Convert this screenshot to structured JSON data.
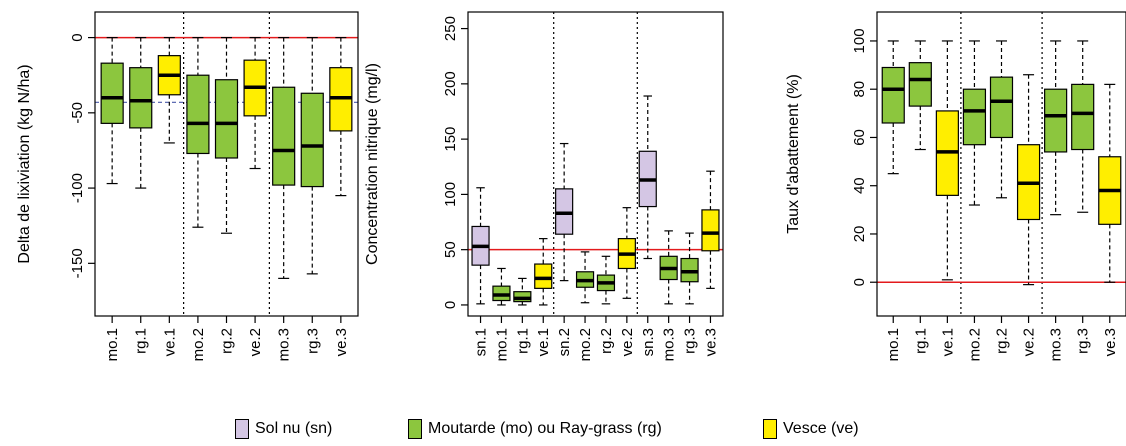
{
  "colors": {
    "sn": "#d4c6e4",
    "mo": "#8cc63e",
    "rg": "#8cc63e",
    "ve": "#ffee00",
    "reference_line": "#e31a1c",
    "mean_line": "#4a5aaa"
  },
  "legend": {
    "items": [
      {
        "label": "Sol nu (sn)",
        "color": "#d4c6e4"
      },
      {
        "label": "Moutarde (mo) ou Ray-grass (rg)",
        "color": "#8cc63e"
      },
      {
        "label": "Vesce (ve)",
        "color": "#ffee00"
      }
    ]
  },
  "chart_data": [
    {
      "type": "box",
      "ylabel": "Delta de lixiviation (kg N/ha)",
      "ylim": [
        -185,
        17
      ],
      "yticks": [
        0,
        -50,
        -100,
        -150
      ],
      "reference_line": 0,
      "mean_line": -43,
      "group_separators_after": [
        3,
        6
      ],
      "categories": [
        "mo.1",
        "rg.1",
        "ve.1",
        "mo.2",
        "rg.2",
        "ve.2",
        "mo.3",
        "rg.3",
        "ve.3"
      ],
      "boxes": [
        {
          "label": "mo.1",
          "group": "mo",
          "min": -97,
          "q1": -57,
          "median": -40,
          "q3": -17,
          "max": 0
        },
        {
          "label": "rg.1",
          "group": "rg",
          "min": -100,
          "q1": -60,
          "median": -42,
          "q3": -20,
          "max": 0
        },
        {
          "label": "ve.1",
          "group": "ve",
          "min": -70,
          "q1": -38,
          "median": -25,
          "q3": -12,
          "max": 0
        },
        {
          "label": "mo.2",
          "group": "mo",
          "min": -126,
          "q1": -77,
          "median": -57,
          "q3": -25,
          "max": 0
        },
        {
          "label": "rg.2",
          "group": "rg",
          "min": -130,
          "q1": -80,
          "median": -57,
          "q3": -28,
          "max": 0
        },
        {
          "label": "ve.2",
          "group": "ve",
          "min": -87,
          "q1": -52,
          "median": -33,
          "q3": -15,
          "max": 0
        },
        {
          "label": "mo.3",
          "group": "mo",
          "min": -160,
          "q1": -98,
          "median": -75,
          "q3": -33,
          "max": 0
        },
        {
          "label": "rg.3",
          "group": "rg",
          "min": -157,
          "q1": -99,
          "median": -72,
          "q3": -37,
          "max": 0
        },
        {
          "label": "ve.3",
          "group": "ve",
          "min": -105,
          "q1": -62,
          "median": -40,
          "q3": -20,
          "max": 0
        }
      ]
    },
    {
      "type": "box",
      "ylabel": "Concentration nitrique (mg/l)",
      "ylim": [
        -10,
        265
      ],
      "yticks": [
        0,
        50,
        100,
        150,
        200,
        250
      ],
      "reference_line": 50,
      "group_separators_after": [
        4,
        8
      ],
      "categories": [
        "sn.1",
        "mo.1",
        "rg.1",
        "ve.1",
        "sn.2",
        "mo.2",
        "rg.2",
        "ve.2",
        "sn.3",
        "mo.3",
        "rg.3",
        "ve.3"
      ],
      "boxes": [
        {
          "label": "sn.1",
          "group": "sn",
          "min": 1,
          "q1": 36,
          "median": 53,
          "q3": 71,
          "max": 106
        },
        {
          "label": "mo.1",
          "group": "mo",
          "min": 0,
          "q1": 4,
          "median": 9,
          "q3": 17,
          "max": 33
        },
        {
          "label": "rg.1",
          "group": "rg",
          "min": 0,
          "q1": 3,
          "median": 6,
          "q3": 12,
          "max": 24
        },
        {
          "label": "ve.1",
          "group": "ve",
          "min": 0,
          "q1": 15,
          "median": 24,
          "q3": 37,
          "max": 60
        },
        {
          "label": "sn.2",
          "group": "sn",
          "min": 22,
          "q1": 64,
          "median": 83,
          "q3": 105,
          "max": 146
        },
        {
          "label": "mo.2",
          "group": "mo",
          "min": 2,
          "q1": 16,
          "median": 22,
          "q3": 30,
          "max": 48
        },
        {
          "label": "rg.2",
          "group": "rg",
          "min": 1,
          "q1": 13,
          "median": 20,
          "q3": 27,
          "max": 44
        },
        {
          "label": "ve.2",
          "group": "ve",
          "min": 6,
          "q1": 33,
          "median": 46,
          "q3": 60,
          "max": 88
        },
        {
          "label": "sn.3",
          "group": "sn",
          "min": 42,
          "q1": 89,
          "median": 113,
          "q3": 139,
          "max": 189
        },
        {
          "label": "mo.3",
          "group": "mo",
          "min": 1,
          "q1": 23,
          "median": 33,
          "q3": 44,
          "max": 67
        },
        {
          "label": "rg.3",
          "group": "rg",
          "min": 1,
          "q1": 21,
          "median": 30,
          "q3": 42,
          "max": 65
        },
        {
          "label": "ve.3",
          "group": "ve",
          "min": 15,
          "q1": 49,
          "median": 65,
          "q3": 86,
          "max": 121
        }
      ]
    },
    {
      "type": "box",
      "ylabel": "Taux d'abattement (%)",
      "ylim": [
        -14,
        112
      ],
      "yticks": [
        0,
        20,
        40,
        60,
        80,
        100
      ],
      "reference_line": 0,
      "group_separators_after": [
        3,
        6
      ],
      "categories": [
        "mo.1",
        "rg.1",
        "ve.1",
        "mo.2",
        "rg.2",
        "ve.2",
        "mo.3",
        "rg.3",
        "ve.3"
      ],
      "boxes": [
        {
          "label": "mo.1",
          "group": "mo",
          "min": 45,
          "q1": 66,
          "median": 80,
          "q3": 89,
          "max": 100
        },
        {
          "label": "rg.1",
          "group": "rg",
          "min": 55,
          "q1": 73,
          "median": 84,
          "q3": 91,
          "max": 100
        },
        {
          "label": "ve.1",
          "group": "ve",
          "min": 1,
          "q1": 36,
          "median": 54,
          "q3": 71,
          "max": 100
        },
        {
          "label": "mo.2",
          "group": "mo",
          "min": 32,
          "q1": 57,
          "median": 71,
          "q3": 80,
          "max": 100
        },
        {
          "label": "rg.2",
          "group": "rg",
          "min": 35,
          "q1": 60,
          "median": 75,
          "q3": 85,
          "max": 100
        },
        {
          "label": "ve.2",
          "group": "ve",
          "min": -1,
          "q1": 26,
          "median": 41,
          "q3": 57,
          "max": 86
        },
        {
          "label": "mo.3",
          "group": "mo",
          "min": 28,
          "q1": 54,
          "median": 69,
          "q3": 80,
          "max": 100
        },
        {
          "label": "rg.3",
          "group": "rg",
          "min": 29,
          "q1": 55,
          "median": 70,
          "q3": 82,
          "max": 100
        },
        {
          "label": "ve.3",
          "group": "ve",
          "min": 0,
          "q1": 24,
          "median": 38,
          "q3": 52,
          "max": 82
        }
      ]
    }
  ]
}
